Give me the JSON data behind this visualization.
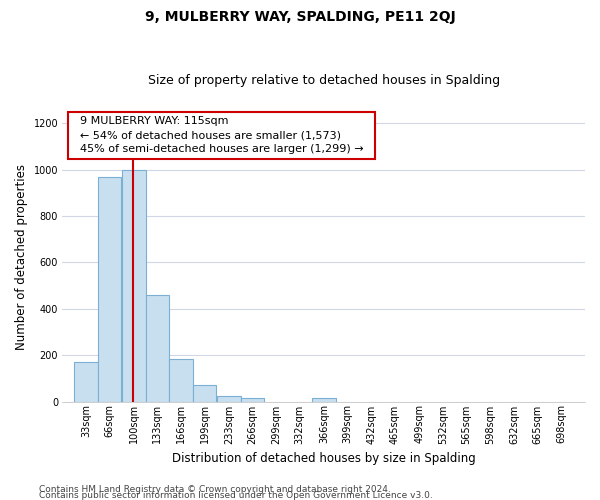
{
  "title": "9, MULBERRY WAY, SPALDING, PE11 2QJ",
  "subtitle": "Size of property relative to detached houses in Spalding",
  "xlabel": "Distribution of detached houses by size in Spalding",
  "ylabel": "Number of detached properties",
  "footer_line1": "Contains HM Land Registry data © Crown copyright and database right 2024.",
  "footer_line2": "Contains public sector information licensed under the Open Government Licence v3.0.",
  "bar_edges": [
    33,
    66,
    100,
    133,
    166,
    199,
    233,
    266,
    299,
    332,
    366,
    399,
    432,
    465,
    499,
    532,
    565,
    598,
    632,
    665,
    698
  ],
  "bar_heights": [
    170,
    970,
    1000,
    460,
    185,
    70,
    25,
    15,
    0,
    0,
    15,
    0,
    0,
    0,
    0,
    0,
    0,
    0,
    0,
    0
  ],
  "bar_color": "#c8dff0",
  "bar_edge_color": "#7bafd4",
  "property_line_x": 115,
  "property_label": "9 MULBERRY WAY: 115sqm",
  "annotation_line1": "← 54% of detached houses are smaller (1,573)",
  "annotation_line2": "45% of semi-detached houses are larger (1,299) →",
  "annotation_box_edge_color": "#cc0000",
  "vline_color": "#cc0000",
  "ylim": [
    0,
    1250
  ],
  "yticks": [
    0,
    200,
    400,
    600,
    800,
    1000,
    1200
  ],
  "xtick_labels": [
    "33sqm",
    "66sqm",
    "100sqm",
    "133sqm",
    "166sqm",
    "199sqm",
    "233sqm",
    "266sqm",
    "299sqm",
    "332sqm",
    "366sqm",
    "399sqm",
    "432sqm",
    "465sqm",
    "499sqm",
    "532sqm",
    "565sqm",
    "598sqm",
    "632sqm",
    "665sqm",
    "698sqm"
  ],
  "bg_color": "#ffffff",
  "grid_color": "#d0d8e8",
  "title_fontsize": 10,
  "subtitle_fontsize": 9,
  "axis_label_fontsize": 8.5,
  "tick_fontsize": 7,
  "annotation_fontsize": 8,
  "footer_fontsize": 6.5
}
